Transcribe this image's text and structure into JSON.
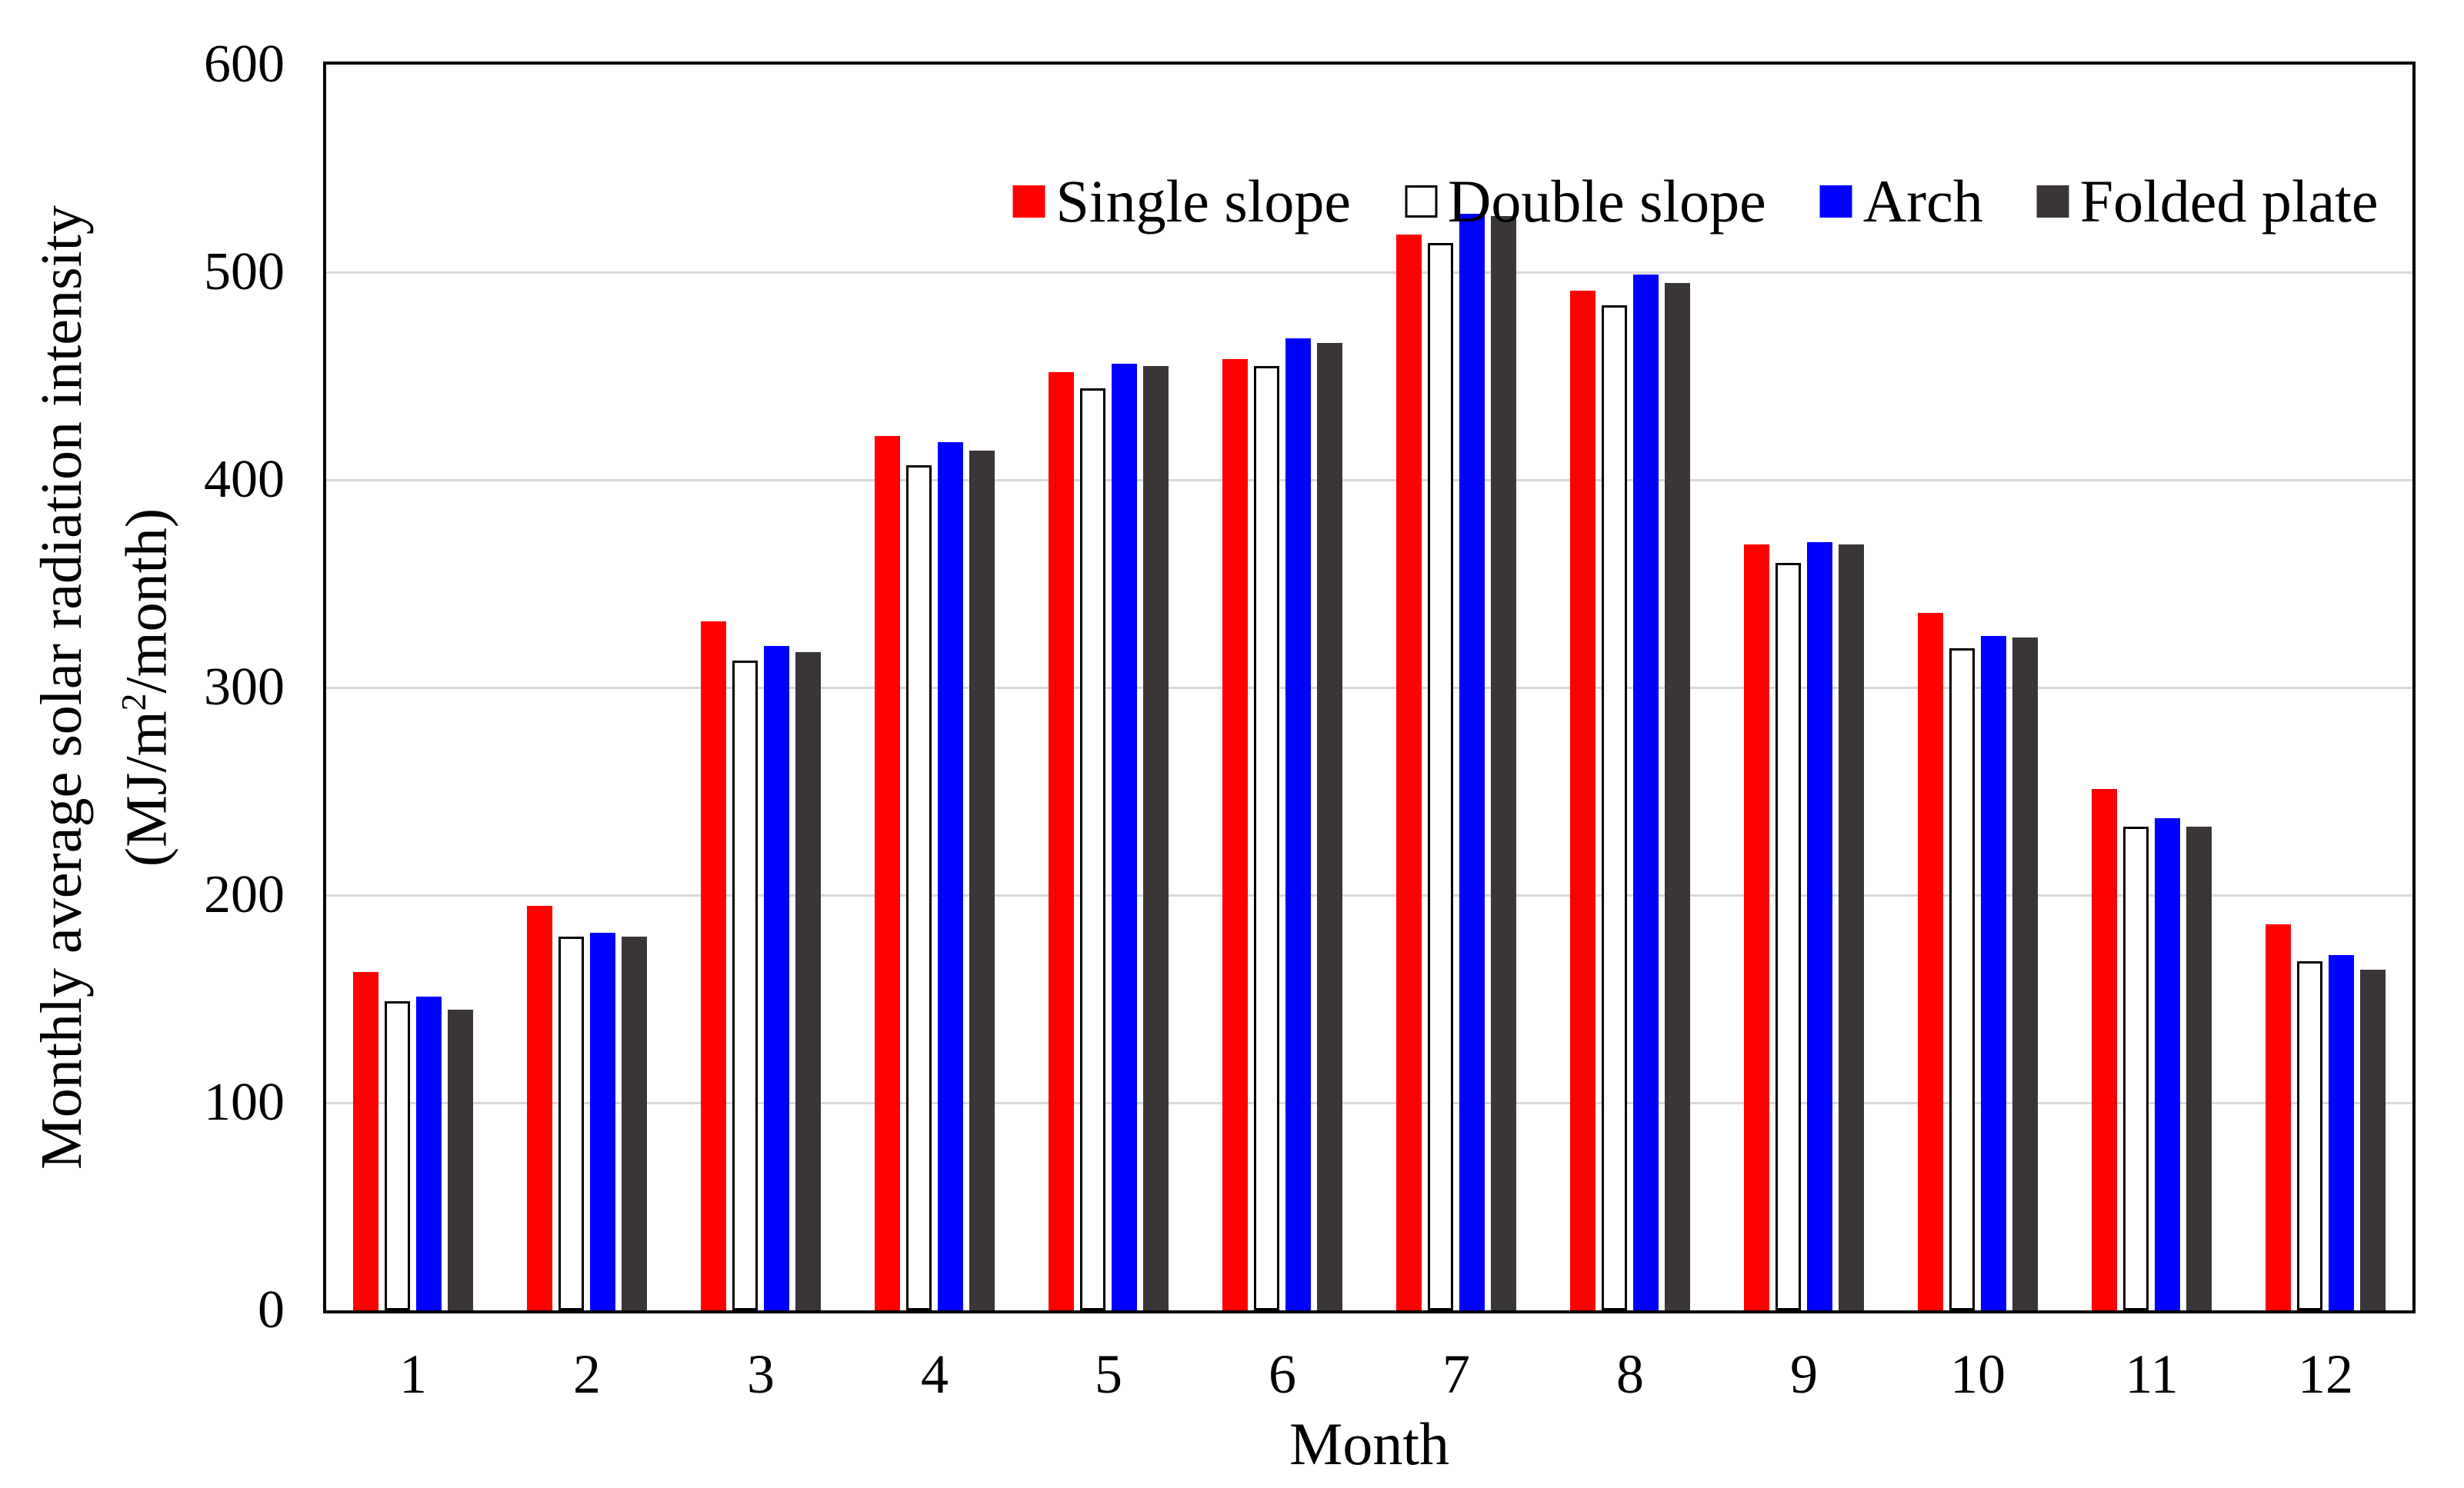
{
  "chart_data": {
    "type": "bar",
    "xlabel": "Month",
    "ylabel": {
      "line1": "Monthly average solar radiation intensity",
      "line2_pre": "(MJ/m",
      "line2_sup": "2",
      "line2_post": "/month)"
    },
    "categories": [
      "1",
      "2",
      "3",
      "4",
      "5",
      "6",
      "7",
      "8",
      "9",
      "10",
      "11",
      "12"
    ],
    "series": [
      {
        "name": "Single slope",
        "color": "#FF0000",
        "outlined": false,
        "values": [
          163,
          195,
          332,
          421,
          452,
          458,
          518,
          491,
          369,
          336,
          251,
          186
        ]
      },
      {
        "name": "Double slope",
        "color": "#FFFFFF",
        "outlined": true,
        "values": [
          149,
          180,
          313,
          407,
          444,
          455,
          514,
          484,
          360,
          319,
          233,
          168
        ]
      },
      {
        "name": "Arch",
        "color": "#0000FF",
        "outlined": false,
        "values": [
          151,
          182,
          320,
          418,
          456,
          468,
          528,
          499,
          370,
          325,
          237,
          171
        ]
      },
      {
        "name": "Folded plate",
        "color": "#3A3537",
        "outlined": false,
        "values": [
          145,
          180,
          317,
          414,
          455,
          466,
          527,
          495,
          369,
          324,
          233,
          164
        ]
      }
    ],
    "ylim": [
      0,
      600
    ],
    "yticks": [
      0,
      100,
      200,
      300,
      400,
      500,
      600
    ],
    "grid": "horizontal",
    "legend_position": "top-inside-centered",
    "colors": {
      "gridline": "#D9D9D9",
      "axis_border": "#000000",
      "background": "#FFFFFF",
      "bar_outline": "#000000"
    }
  }
}
